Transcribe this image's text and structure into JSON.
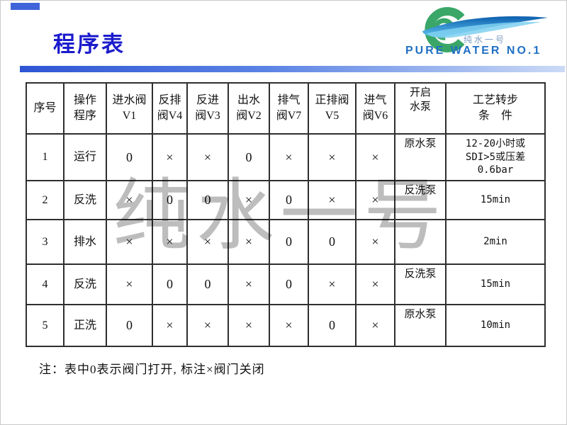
{
  "slide": {
    "title": "程序表",
    "note": "注：表中0表示阀门打开, 标注×阀门关闭"
  },
  "logo": {
    "brand_cn": "纯水一号",
    "brand_en": "PURE WATER NO.1",
    "green": "#3aa768",
    "wave_blue_dark": "#0d5fae",
    "wave_blue_light": "#5ec1ee",
    "text_blue": "#1f6fc4"
  },
  "watermark": "纯水一号",
  "colors": {
    "title_blue": "#1b1bcd",
    "bar_gradient_from": "#2e55d4",
    "bar_gradient_to": "#cbdaf6",
    "accent_blue": "#3f64d9",
    "table_border": "#2f2f2f",
    "watermark_gray": "#bdbdbd"
  },
  "table": {
    "columns": [
      "序号",
      "操作\n程序",
      "进水阀\nV1",
      "反排\n阀V4",
      "反进\n阀V3",
      "出水\n阀V2",
      "排气\n阀V7",
      "正排阀\nV5",
      "进气\n阀V6",
      "开启\n水泵",
      "工艺转步\n条　件"
    ],
    "rows": [
      {
        "cells": [
          "1",
          "运行",
          "0",
          "×",
          "×",
          "0",
          "×",
          "×",
          "×",
          "原水泵",
          "12-20小时或\nSDI>5或压差\n0.6bar"
        ]
      },
      {
        "cells": [
          "2",
          "反洗",
          "×",
          "0",
          "0",
          "×",
          "0",
          "×",
          "×",
          "反洗泵",
          "15min"
        ]
      },
      {
        "cells": [
          "3",
          "排水",
          "×",
          "×",
          "×",
          "×",
          "0",
          "0",
          "×",
          "",
          "2min"
        ]
      },
      {
        "cells": [
          "4",
          "反洗",
          "×",
          "0",
          "0",
          "×",
          "0",
          "×",
          "×",
          "反洗泵",
          "15min"
        ]
      },
      {
        "cells": [
          "5",
          "正洗",
          "0",
          "×",
          "×",
          "×",
          "×",
          "0",
          "×",
          "原水泵",
          "10min"
        ]
      }
    ]
  }
}
